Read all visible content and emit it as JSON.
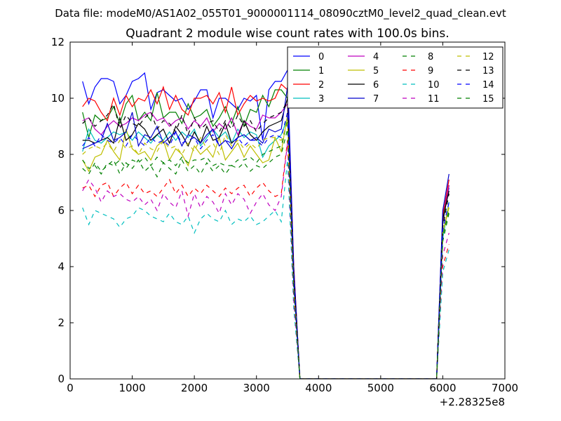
{
  "figure": {
    "suptitle": "Data file: modeM0/AS1A02_055T01_9000001114_08090cztM0_level2_quad_clean.evt"
  },
  "chart_data": {
    "type": "line",
    "title": "Quadrant 2 module wise count rates with 100.0s bins.",
    "xlabel": "",
    "ylabel": "",
    "x_offset_label": "+2.28325e8",
    "xlim": [
      0,
      7000
    ],
    "ylim": [
      0,
      12
    ],
    "xticks": [
      0,
      1000,
      2000,
      3000,
      4000,
      5000,
      6000,
      7000
    ],
    "yticks": [
      0,
      2,
      4,
      6,
      8,
      10,
      12
    ],
    "grid": false,
    "legend_position": "top-right",
    "legend_columns": 4,
    "x": [
      200,
      300,
      400,
      500,
      600,
      700,
      800,
      900,
      1000,
      1100,
      1200,
      1300,
      1400,
      1500,
      1600,
      1700,
      1800,
      1900,
      2000,
      2100,
      2200,
      2300,
      2400,
      2500,
      2600,
      2700,
      2800,
      2900,
      3000,
      3100,
      3200,
      3300,
      3400,
      3500,
      3600,
      3700,
      3800,
      3900,
      4000,
      4100,
      4200,
      4300,
      4400,
      4500,
      4600,
      4700,
      4800,
      4900,
      5000,
      5100,
      5200,
      5300,
      5400,
      5500,
      5600,
      5700,
      5800,
      5900,
      6000,
      6100
    ],
    "series": [
      {
        "name": "0",
        "color": "#0000ff",
        "dash": "solid",
        "values": [
          10.6,
          9.8,
          10.4,
          10.7,
          10.7,
          10.6,
          9.8,
          10.1,
          10.6,
          10.7,
          10.9,
          9.6,
          10.2,
          10.3,
          10.1,
          9.9,
          10.0,
          9.6,
          9.9,
          10.3,
          10.3,
          9.3,
          10.0,
          10.0,
          9.8,
          9.6,
          10.0,
          9.9,
          10.1,
          8.5,
          10.3,
          10.6,
          10.6,
          11.0,
          4.0,
          0.0,
          0.0,
          0.0,
          0.0,
          0.0,
          0.0,
          0.0,
          0.0,
          0.0,
          0.0,
          0.0,
          0.0,
          0.0,
          0.0,
          0.0,
          0.0,
          0.0,
          0.0,
          0.0,
          0.0,
          0.0,
          0.0,
          0.0,
          5.9,
          6.8
        ]
      },
      {
        "name": "1",
        "color": "#008000",
        "dash": "solid",
        "values": [
          9.5,
          8.6,
          9.4,
          9.2,
          9.3,
          9.7,
          9.1,
          9.8,
          10.1,
          9.2,
          9.5,
          9.2,
          10.2,
          9.3,
          9.5,
          9.5,
          9.1,
          9.8,
          9.3,
          9.4,
          9.6,
          9.0,
          9.3,
          9.7,
          9.1,
          9.7,
          9.0,
          9.6,
          9.5,
          10.1,
          9.7,
          10.3,
          10.3,
          10.0,
          3.8,
          0.0,
          0.0,
          0.0,
          0.0,
          0.0,
          0.0,
          0.0,
          0.0,
          0.0,
          0.0,
          0.0,
          0.0,
          0.0,
          0.0,
          0.0,
          0.0,
          0.0,
          0.0,
          0.0,
          0.0,
          0.0,
          0.0,
          0.0,
          5.5,
          6.9
        ]
      },
      {
        "name": "2",
        "color": "#ff0000",
        "dash": "solid",
        "values": [
          9.7,
          10.0,
          9.9,
          9.5,
          9.2,
          10.0,
          9.4,
          10.1,
          9.7,
          10.0,
          9.9,
          10.3,
          9.8,
          10.4,
          9.6,
          10.1,
          9.6,
          9.4,
          10.0,
          10.0,
          10.1,
          9.8,
          10.2,
          9.5,
          10.4,
          9.4,
          9.8,
          10.1,
          9.9,
          10.0,
          9.9,
          10.0,
          10.5,
          10.3,
          4.0,
          0.0,
          0.0,
          0.0,
          0.0,
          0.0,
          0.0,
          0.0,
          0.0,
          0.0,
          0.0,
          0.0,
          0.0,
          0.0,
          0.0,
          0.0,
          0.0,
          0.0,
          0.0,
          0.0,
          0.0,
          0.0,
          0.0,
          0.0,
          5.8,
          7.1
        ]
      },
      {
        "name": "3",
        "color": "#00bfbf",
        "dash": "solid",
        "values": [
          8.1,
          8.9,
          8.5,
          8.4,
          8.6,
          8.8,
          8.7,
          8.8,
          8.5,
          8.8,
          8.6,
          8.4,
          8.7,
          8.5,
          8.8,
          8.5,
          8.8,
          8.6,
          8.9,
          8.3,
          8.6,
          8.9,
          8.6,
          8.8,
          8.4,
          8.9,
          8.6,
          8.8,
          8.7,
          7.9,
          8.3,
          8.5,
          8.7,
          9.3,
          3.5,
          0.0,
          0.0,
          0.0,
          0.0,
          0.0,
          0.0,
          0.0,
          0.0,
          0.0,
          0.0,
          0.0,
          0.0,
          0.0,
          0.0,
          0.0,
          0.0,
          0.0,
          0.0,
          0.0,
          0.0,
          0.0,
          0.0,
          0.0,
          5.0,
          6.3
        ]
      },
      {
        "name": "4",
        "color": "#bf00bf",
        "dash": "solid",
        "values": [
          9.2,
          9.3,
          8.9,
          8.7,
          9.0,
          9.2,
          9.0,
          9.1,
          9.3,
          9.2,
          9.4,
          9.5,
          9.2,
          9.3,
          9.0,
          9.2,
          9.3,
          8.9,
          9.2,
          9.0,
          9.3,
          8.8,
          9.1,
          8.9,
          9.3,
          8.7,
          9.2,
          9.0,
          8.9,
          9.4,
          9.3,
          9.3,
          9.5,
          9.8,
          3.7,
          0.0,
          0.0,
          0.0,
          0.0,
          0.0,
          0.0,
          0.0,
          0.0,
          0.0,
          0.0,
          0.0,
          0.0,
          0.0,
          0.0,
          0.0,
          0.0,
          0.0,
          0.0,
          0.0,
          0.0,
          0.0,
          0.0,
          0.0,
          5.6,
          6.9
        ]
      },
      {
        "name": "5",
        "color": "#bfbf00",
        "dash": "solid",
        "values": [
          7.8,
          7.4,
          7.9,
          8.0,
          8.5,
          8.1,
          7.8,
          8.9,
          8.2,
          8.0,
          8.1,
          7.8,
          8.3,
          8.5,
          7.8,
          8.2,
          8.0,
          7.6,
          8.3,
          8.0,
          8.2,
          7.9,
          8.6,
          7.8,
          8.1,
          8.4,
          7.9,
          8.3,
          8.0,
          7.7,
          7.8,
          8.6,
          8.1,
          9.4,
          3.5,
          0.0,
          0.0,
          0.0,
          0.0,
          0.0,
          0.0,
          0.0,
          0.0,
          0.0,
          0.0,
          0.0,
          0.0,
          0.0,
          0.0,
          0.0,
          0.0,
          0.0,
          0.0,
          0.0,
          0.0,
          0.0,
          0.0,
          0.0,
          5.2,
          6.1
        ]
      },
      {
        "name": "6",
        "color": "#000000",
        "dash": "solid",
        "values": [
          8.5,
          8.5,
          8.4,
          8.5,
          8.6,
          8.4,
          9.3,
          8.5,
          8.7,
          9.1,
          8.9,
          8.5,
          8.7,
          8.9,
          8.4,
          9.0,
          8.7,
          8.3,
          8.8,
          8.4,
          9.0,
          8.5,
          8.6,
          9.1,
          8.4,
          8.6,
          9.2,
          8.7,
          8.5,
          8.8,
          9.0,
          9.1,
          9.2,
          10.0,
          3.7,
          0.0,
          0.0,
          0.0,
          0.0,
          0.0,
          0.0,
          0.0,
          0.0,
          0.0,
          0.0,
          0.0,
          0.0,
          0.0,
          0.0,
          0.0,
          0.0,
          0.0,
          0.0,
          0.0,
          0.0,
          0.0,
          0.0,
          0.0,
          5.7,
          6.7
        ]
      },
      {
        "name": "7",
        "color": "#0000cd",
        "dash": "solid",
        "values": [
          8.2,
          8.3,
          8.4,
          8.5,
          9.1,
          8.5,
          8.6,
          8.8,
          9.5,
          8.3,
          8.7,
          8.6,
          9.0,
          8.4,
          8.6,
          8.8,
          8.3,
          8.7,
          8.6,
          8.4,
          8.7,
          8.9,
          8.3,
          8.5,
          8.2,
          8.6,
          8.7,
          8.5,
          8.6,
          8.4,
          8.9,
          8.8,
          8.9,
          10.4,
          3.9,
          0.0,
          0.0,
          0.0,
          0.0,
          0.0,
          0.0,
          0.0,
          0.0,
          0.0,
          0.0,
          0.0,
          0.0,
          0.0,
          0.0,
          0.0,
          0.0,
          0.0,
          0.0,
          0.0,
          0.0,
          0.0,
          0.0,
          0.0,
          6.0,
          7.3
        ]
      },
      {
        "name": "8",
        "color": "#008000",
        "dash": "dashed",
        "values": [
          7.8,
          7.5,
          7.6,
          7.3,
          7.7,
          7.6,
          7.8,
          7.5,
          7.8,
          7.7,
          7.9,
          7.6,
          7.9,
          7.7,
          7.8,
          7.6,
          7.9,
          7.7,
          7.8,
          7.8,
          7.9,
          7.6,
          7.7,
          7.6,
          7.6,
          7.8,
          7.8,
          7.9,
          7.7,
          8.0,
          8.1,
          8.2,
          8.3,
          9.2,
          3.3,
          0.0,
          0.0,
          0.0,
          0.0,
          0.0,
          0.0,
          0.0,
          0.0,
          0.0,
          0.0,
          0.0,
          0.0,
          0.0,
          0.0,
          0.0,
          0.0,
          0.0,
          0.0,
          0.0,
          0.0,
          0.0,
          0.0,
          0.0,
          5.1,
          6.0
        ]
      },
      {
        "name": "9",
        "color": "#ff0000",
        "dash": "dashed",
        "values": [
          6.8,
          6.9,
          6.5,
          6.9,
          7.0,
          6.5,
          6.8,
          7.0,
          6.6,
          6.9,
          6.6,
          6.7,
          6.5,
          6.8,
          7.1,
          6.6,
          6.9,
          6.5,
          6.8,
          6.6,
          6.9,
          6.7,
          6.5,
          6.8,
          6.6,
          6.8,
          6.9,
          6.5,
          6.8,
          7.0,
          6.7,
          6.5,
          6.6,
          8.5,
          2.9,
          0.0,
          0.0,
          0.0,
          0.0,
          0.0,
          0.0,
          0.0,
          0.0,
          0.0,
          0.0,
          0.0,
          0.0,
          0.0,
          0.0,
          0.0,
          0.0,
          0.0,
          0.0,
          0.0,
          0.0,
          0.0,
          0.0,
          0.0,
          4.0,
          4.8
        ]
      },
      {
        "name": "10",
        "color": "#00bfbf",
        "dash": "dashed",
        "values": [
          6.1,
          5.5,
          6.0,
          5.9,
          5.8,
          5.7,
          5.4,
          5.7,
          5.8,
          6.1,
          6.0,
          5.8,
          5.7,
          5.6,
          5.9,
          5.6,
          5.5,
          5.8,
          5.2,
          5.7,
          5.9,
          5.7,
          5.6,
          6.0,
          5.5,
          5.7,
          5.6,
          5.8,
          5.5,
          5.6,
          5.8,
          6.0,
          5.6,
          7.8,
          2.5,
          0.0,
          0.0,
          0.0,
          0.0,
          0.0,
          0.0,
          0.0,
          0.0,
          0.0,
          0.0,
          0.0,
          0.0,
          0.0,
          0.0,
          0.0,
          0.0,
          0.0,
          0.0,
          0.0,
          0.0,
          0.0,
          0.0,
          0.0,
          3.8,
          4.6
        ]
      },
      {
        "name": "11",
        "color": "#bf00bf",
        "dash": "dashed",
        "values": [
          6.7,
          7.1,
          6.8,
          6.3,
          6.7,
          6.5,
          6.6,
          6.4,
          6.3,
          6.5,
          6.2,
          6.4,
          6.0,
          6.6,
          6.3,
          6.1,
          6.7,
          5.8,
          6.6,
          6.1,
          6.5,
          6.3,
          5.9,
          6.6,
          6.2,
          6.6,
          6.4,
          5.9,
          6.3,
          6.6,
          6.2,
          6.0,
          6.5,
          8.4,
          2.8,
          0.0,
          0.0,
          0.0,
          0.0,
          0.0,
          0.0,
          0.0,
          0.0,
          0.0,
          0.0,
          0.0,
          0.0,
          0.0,
          0.0,
          0.0,
          0.0,
          0.0,
          0.0,
          0.0,
          0.0,
          0.0,
          0.0,
          0.0,
          4.4,
          5.2
        ]
      },
      {
        "name": "12",
        "color": "#bfbf00",
        "dash": "dashed",
        "values": [
          8.0,
          8.2,
          8.3,
          8.2,
          8.4,
          8.1,
          8.5,
          8.2,
          8.3,
          8.0,
          8.4,
          8.2,
          8.1,
          8.5,
          8.2,
          8.3,
          8.0,
          8.4,
          8.1,
          8.6,
          8.2,
          8.4,
          8.0,
          8.7,
          8.3,
          8.5,
          8.2,
          8.4,
          8.2,
          8.5,
          8.6,
          8.6,
          8.5,
          9.1,
          3.3,
          0.0,
          0.0,
          0.0,
          0.0,
          0.0,
          0.0,
          0.0,
          0.0,
          0.0,
          0.0,
          0.0,
          0.0,
          0.0,
          0.0,
          0.0,
          0.0,
          0.0,
          0.0,
          0.0,
          0.0,
          0.0,
          0.0,
          0.0,
          5.2,
          6.2
        ]
      },
      {
        "name": "13",
        "color": "#000000",
        "dash": "dashed",
        "values": [
          9.1,
          9.3,
          9.0,
          9.2,
          9.4,
          9.8,
          8.9,
          9.4,
          9.1,
          9.0,
          9.3,
          9.5,
          8.9,
          9.2,
          9.1,
          8.8,
          9.4,
          8.7,
          9.3,
          8.9,
          9.1,
          9.2,
          8.8,
          9.2,
          8.9,
          9.4,
          9.0,
          9.2,
          8.8,
          9.1,
          9.3,
          9.4,
          9.5,
          9.9,
          3.6,
          0.0,
          0.0,
          0.0,
          0.0,
          0.0,
          0.0,
          0.0,
          0.0,
          0.0,
          0.0,
          0.0,
          0.0,
          0.0,
          0.0,
          0.0,
          0.0,
          0.0,
          0.0,
          0.0,
          0.0,
          0.0,
          0.0,
          0.0,
          5.4,
          6.6
        ]
      },
      {
        "name": "14",
        "color": "#0000ff",
        "dash": "dashed",
        "values": [
          8.3,
          8.6,
          8.3,
          8.7,
          8.5,
          8.4,
          8.6,
          8.3,
          8.7,
          8.5,
          8.3,
          8.6,
          8.4,
          8.5,
          8.3,
          8.8,
          8.4,
          8.5,
          8.6,
          8.2,
          8.5,
          8.7,
          8.3,
          8.5,
          8.4,
          8.6,
          8.3,
          8.5,
          8.5,
          8.3,
          8.6,
          8.7,
          8.6,
          9.5,
          3.4,
          0.0,
          0.0,
          0.0,
          0.0,
          0.0,
          0.0,
          0.0,
          0.0,
          0.0,
          0.0,
          0.0,
          0.0,
          0.0,
          0.0,
          0.0,
          0.0,
          0.0,
          0.0,
          0.0,
          0.0,
          0.0,
          0.0,
          0.0,
          5.3,
          6.3
        ]
      },
      {
        "name": "15",
        "color": "#008000",
        "dash": "dashed",
        "values": [
          7.5,
          7.3,
          7.7,
          7.4,
          7.6,
          7.8,
          7.3,
          7.7,
          7.5,
          7.8,
          7.4,
          7.6,
          7.2,
          7.7,
          7.5,
          7.3,
          7.8,
          7.4,
          7.6,
          7.3,
          7.7,
          7.4,
          7.6,
          7.3,
          7.6,
          7.5,
          7.7,
          7.4,
          7.6,
          7.5,
          7.7,
          7.9,
          8.0,
          8.9,
          3.2,
          0.0,
          0.0,
          0.0,
          0.0,
          0.0,
          0.0,
          0.0,
          0.0,
          0.0,
          0.0,
          0.0,
          0.0,
          0.0,
          0.0,
          0.0,
          0.0,
          0.0,
          0.0,
          0.0,
          0.0,
          0.0,
          0.0,
          0.0,
          4.9,
          5.9
        ]
      }
    ]
  }
}
